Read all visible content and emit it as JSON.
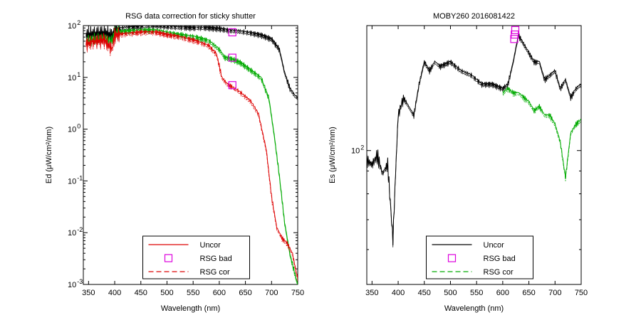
{
  "chart_data": [
    {
      "type": "line",
      "title": "RSG data correction for sticky shutter",
      "xlabel": "Wavelength (nm)",
      "ylabel": "Ed (μW/cm²/nm)",
      "xlim": [
        340,
        750
      ],
      "ylim": [
        -3,
        2
      ],
      "yscale": "log",
      "x_ticks": [
        350,
        400,
        450,
        500,
        550,
        600,
        650,
        700,
        750
      ],
      "y_ticks": [
        {
          "base": "10",
          "exp": "2",
          "value": 2
        },
        {
          "base": "10",
          "exp": "1",
          "value": 1
        },
        {
          "base": "10",
          "exp": "0",
          "value": 0
        },
        {
          "base": "10",
          "exp": "-1",
          "value": -1
        },
        {
          "base": "10",
          "exp": "-2",
          "value": -2
        },
        {
          "base": "10",
          "exp": "-3",
          "value": -3
        }
      ],
      "grid": false,
      "legend_position": "bottom-center",
      "legend": [
        {
          "label": "Uncor",
          "style": "line",
          "color": "#dd0000"
        },
        {
          "label": "RSG bad",
          "style": "square",
          "color": "#dd00dd"
        },
        {
          "label": "RSG cor",
          "style": "dashed",
          "color": "#dd0000"
        }
      ],
      "series": [
        {
          "color": "#000000",
          "x": [
            345,
            360,
            380,
            395,
            400,
            420,
            450,
            480,
            500,
            520,
            550,
            580,
            600,
            620,
            640,
            660,
            680,
            700,
            715,
            725,
            735,
            745,
            750
          ],
          "y": [
            1.82,
            1.85,
            1.87,
            1.82,
            1.95,
            1.97,
            2.0,
            2.02,
            2.0,
            1.98,
            1.97,
            1.97,
            1.95,
            1.92,
            1.9,
            1.87,
            1.83,
            1.75,
            1.55,
            1.1,
            0.8,
            0.65,
            0.63
          ]
        },
        {
          "color": "#00aa00",
          "x": [
            345,
            360,
            380,
            395,
            400,
            420,
            450,
            480,
            500,
            520,
            550,
            580,
            600,
            610,
            625,
            640,
            660,
            680,
            695,
            705,
            715,
            725,
            735,
            745,
            750
          ],
          "y": [
            1.72,
            1.75,
            1.78,
            1.72,
            1.88,
            1.9,
            1.92,
            1.92,
            1.88,
            1.84,
            1.8,
            1.72,
            1.55,
            1.4,
            1.36,
            1.3,
            1.15,
            1.0,
            0.6,
            -0.1,
            -0.9,
            -1.8,
            -2.4,
            -2.8,
            -3.0
          ]
        },
        {
          "color": "#dd0000",
          "x": [
            345,
            360,
            380,
            395,
            400,
            420,
            450,
            480,
            500,
            520,
            550,
            580,
            595,
            605,
            615,
            625,
            640,
            660,
            675,
            690,
            700,
            710,
            720,
            730,
            740,
            750
          ],
          "y": [
            1.65,
            1.7,
            1.73,
            1.55,
            1.82,
            1.85,
            1.88,
            1.88,
            1.83,
            1.8,
            1.73,
            1.62,
            1.45,
            1.0,
            0.88,
            0.82,
            0.72,
            0.55,
            0.3,
            -0.4,
            -1.3,
            -1.9,
            -2.1,
            -2.2,
            -2.4,
            -2.9
          ]
        }
      ],
      "markers": [
        {
          "label": "RSG bad",
          "x": 625,
          "y": 1.87
        },
        {
          "label": "RSG bad",
          "x": 625,
          "y": 1.38
        },
        {
          "label": "RSG bad",
          "x": 625,
          "y": 0.85
        }
      ]
    },
    {
      "type": "line",
      "title": "MOBY260  2016081422",
      "xlabel": "Wavelength (nm)",
      "ylabel": "Es (μW/cm²/nm)",
      "xlim": [
        340,
        750
      ],
      "ylim": [
        1.7,
        2.28
      ],
      "yscale": "log",
      "x_ticks": [
        350,
        400,
        450,
        500,
        550,
        600,
        650,
        700,
        750
      ],
      "y_ticks": [
        {
          "base": "10",
          "exp": "2",
          "value": 2
        }
      ],
      "grid": false,
      "legend_position": "bottom-center",
      "legend": [
        {
          "label": "Uncor",
          "style": "line",
          "color": "#000000"
        },
        {
          "label": "RSG bad",
          "style": "square",
          "color": "#dd00dd"
        },
        {
          "label": "RSG cor",
          "style": "dashed",
          "color": "#00aa00"
        }
      ],
      "series": [
        {
          "color": "#000000",
          "x": [
            340,
            350,
            360,
            370,
            380,
            390,
            395,
            400,
            410,
            420,
            430,
            440,
            450,
            460,
            470,
            480,
            500,
            520,
            540,
            560,
            580,
            600,
            610,
            620,
            630,
            640,
            650,
            660,
            670,
            680,
            690,
            700,
            710,
            720,
            730,
            740,
            750
          ],
          "y": [
            1.98,
            1.97,
            1.99,
            1.95,
            1.97,
            1.8,
            1.95,
            2.08,
            2.12,
            2.1,
            2.08,
            2.15,
            2.2,
            2.18,
            2.2,
            2.19,
            2.2,
            2.18,
            2.17,
            2.15,
            2.15,
            2.14,
            2.15,
            2.2,
            2.26,
            2.24,
            2.22,
            2.2,
            2.2,
            2.16,
            2.17,
            2.18,
            2.14,
            2.16,
            2.12,
            2.14,
            2.15
          ]
        },
        {
          "color": "#00aa00",
          "x": [
            600,
            610,
            620,
            630,
            640,
            650,
            660,
            670,
            680,
            690,
            700,
            710,
            715,
            720,
            725,
            730,
            740,
            750
          ],
          "y": [
            2.13,
            2.14,
            2.13,
            2.13,
            2.12,
            2.11,
            2.09,
            2.1,
            2.08,
            2.08,
            2.06,
            2.02,
            1.98,
            1.94,
            1.99,
            2.04,
            2.06,
            2.07
          ]
        }
      ],
      "markers": [
        {
          "label": "RSG bad",
          "x": 622,
          "y": 2.25
        },
        {
          "label": "RSG bad",
          "x": 623,
          "y": 2.26
        },
        {
          "label": "RSG bad",
          "x": 624,
          "y": 2.27
        }
      ]
    }
  ]
}
